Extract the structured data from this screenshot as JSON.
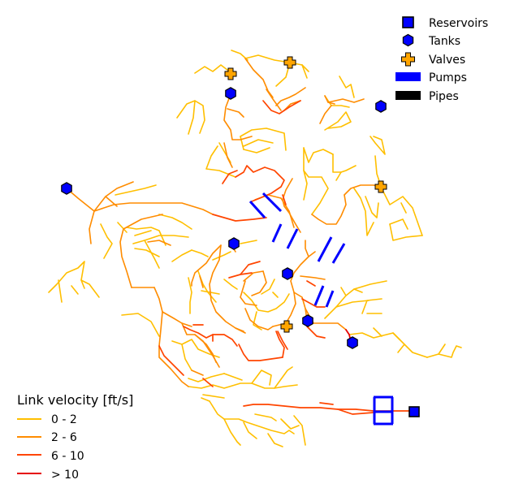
{
  "legend_items": {
    "reservoirs": "Reservoirs",
    "tanks": "Tanks",
    "valves": "Valves",
    "pumps": "Pumps",
    "pipes": "Pipes"
  },
  "velocity_legend": {
    "title": "Link velocity [ft/s]",
    "classes": [
      {
        "label": "0 - 2",
        "color": "#ffbf00"
      },
      {
        "label": "2 - 6",
        "color": "#ff8c00"
      },
      {
        "label": "6 - 10",
        "color": "#ff4500"
      },
      {
        "label": "> 10",
        "color": "#e60000"
      }
    ]
  },
  "colors": {
    "reservoir": "#0000ff",
    "tank": "#0000ff",
    "valve": "#ffa500",
    "pump": "#0000ff",
    "pipe_legend": "#000000",
    "outline": "#000000"
  },
  "icons": {
    "reservoir": "square-marker-icon",
    "tank": "hexagon-marker-icon",
    "valve": "plus-marker-icon",
    "pump": "pump-bar-icon",
    "pipe": "pipe-bar-icon"
  }
}
